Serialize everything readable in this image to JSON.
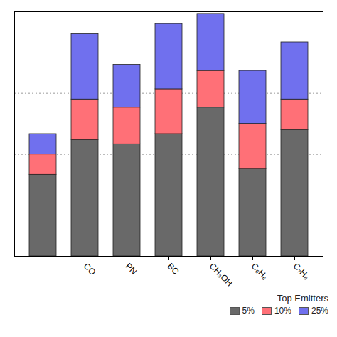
{
  "chart_data": {
    "type": "bar",
    "stacked": true,
    "categories": [
      null,
      "CO",
      "PN",
      "BC",
      "CH₃OH",
      "C₆H₆",
      "C₇H₈"
    ],
    "series": [
      {
        "name": "5%",
        "color": "#696969",
        "values": [
          0.4,
          0.57,
          0.55,
          0.6,
          0.73,
          0.43,
          0.62
        ]
      },
      {
        "name": "10%",
        "color": "#FF7077",
        "values": [
          0.1,
          0.2,
          0.18,
          0.22,
          0.18,
          0.22,
          0.15
        ]
      },
      {
        "name": "25%",
        "color": "#7070EE",
        "values": [
          0.1,
          0.32,
          0.21,
          0.32,
          0.28,
          0.26,
          0.28
        ]
      }
    ],
    "legend_title": "Top Emitters",
    "legend": "lower right",
    "ylim": [
      0,
      1.2
    ],
    "yticks": [
      0.5,
      0.8
    ],
    "grid": true,
    "tick_labels": "x"
  }
}
